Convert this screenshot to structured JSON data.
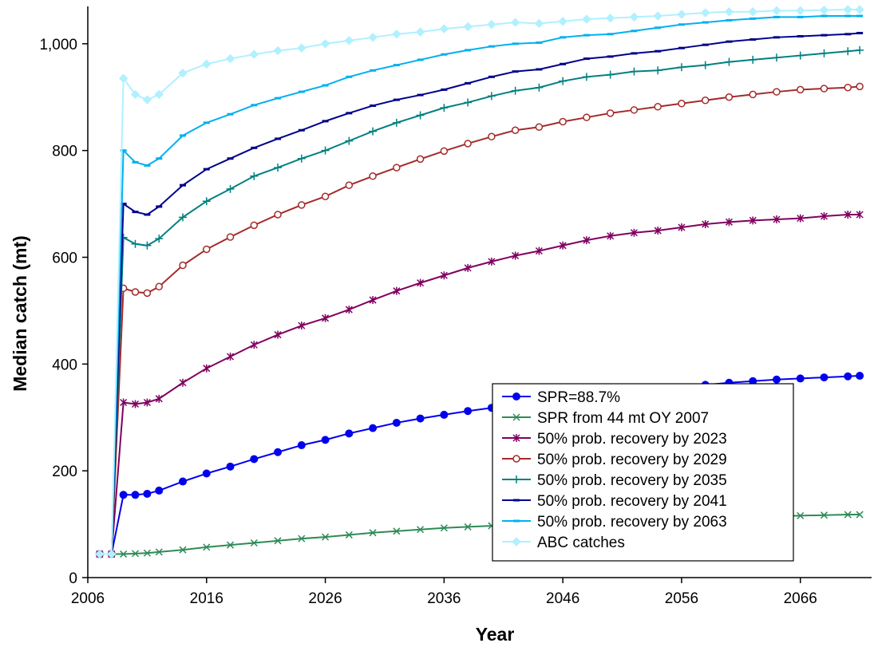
{
  "chart_data": {
    "type": "line",
    "title": "",
    "xlabel": "Year",
    "ylabel": "Median catch (mt)",
    "xlim": [
      2006,
      2072
    ],
    "ylim": [
      0,
      1070
    ],
    "xticks": [
      2006,
      2016,
      2026,
      2036,
      2046,
      2056,
      2066
    ],
    "xtick_labels": [
      "2006",
      "2016",
      "2026",
      "2036",
      "2046",
      "2056",
      "2066"
    ],
    "yticks": [
      0,
      200,
      400,
      600,
      800,
      1000
    ],
    "ytick_labels": [
      "0",
      "200",
      "400",
      "600",
      "800",
      "1,000"
    ],
    "grid": false,
    "legend_position": "bottom-right",
    "x": [
      2007,
      2008,
      2009,
      2010,
      2011,
      2012,
      2014,
      2016,
      2018,
      2020,
      2022,
      2024,
      2026,
      2028,
      2030,
      2032,
      2034,
      2036,
      2038,
      2040,
      2042,
      2044,
      2046,
      2048,
      2050,
      2052,
      2054,
      2056,
      2058,
      2060,
      2062,
      2064,
      2066,
      2068,
      2070,
      2071
    ],
    "series": [
      {
        "name": "SPR=88.7%",
        "color": "#0000ee",
        "marker": "circle",
        "values": [
          44,
          44,
          155,
          155,
          157,
          163,
          180,
          195,
          208,
          222,
          235,
          248,
          258,
          270,
          280,
          290,
          298,
          305,
          312,
          318,
          324,
          330,
          335,
          340,
          344,
          348,
          352,
          356,
          361,
          365,
          368,
          371,
          373,
          375,
          377,
          378
        ]
      },
      {
        "name": "SPR from 44 mt OY 2007",
        "color": "#2e8b57",
        "marker": "x",
        "values": [
          44,
          44,
          44,
          45,
          46,
          48,
          52,
          57,
          61,
          65,
          69,
          73,
          76,
          80,
          84,
          87,
          90,
          93,
          95,
          97,
          99,
          101,
          103,
          105,
          107,
          108,
          110,
          111,
          112,
          113,
          114,
          115,
          116,
          117,
          118,
          118
        ]
      },
      {
        "name": "50% prob. recovery by 2023",
        "color": "#800060",
        "marker": "asterisk",
        "values": [
          44,
          44,
          328,
          325,
          328,
          335,
          365,
          392,
          414,
          436,
          455,
          472,
          486,
          502,
          520,
          537,
          552,
          566,
          580,
          592,
          603,
          612,
          622,
          632,
          640,
          646,
          650,
          656,
          662,
          666,
          669,
          671,
          673,
          677,
          680,
          680
        ]
      },
      {
        "name": "50% prob. recovery by 2029",
        "color": "#a52a2a",
        "marker": "open-circle",
        "values": [
          44,
          44,
          542,
          535,
          533,
          545,
          585,
          615,
          638,
          660,
          680,
          698,
          714,
          735,
          752,
          768,
          784,
          799,
          813,
          826,
          838,
          844,
          854,
          862,
          870,
          876,
          882,
          888,
          894,
          900,
          905,
          910,
          914,
          916,
          918,
          920
        ]
      },
      {
        "name": "50% prob. recovery by 2035",
        "color": "#008080",
        "marker": "plus",
        "values": [
          44,
          44,
          637,
          625,
          622,
          635,
          675,
          705,
          728,
          752,
          768,
          785,
          800,
          818,
          836,
          852,
          866,
          880,
          890,
          902,
          912,
          918,
          930,
          938,
          942,
          948,
          950,
          956,
          960,
          966,
          970,
          974,
          978,
          982,
          986,
          988
        ]
      },
      {
        "name": "50% prob. recovery by 2041",
        "color": "#00008b",
        "marker": "dash",
        "values": [
          44,
          44,
          700,
          685,
          680,
          695,
          735,
          765,
          785,
          805,
          822,
          838,
          855,
          870,
          884,
          895,
          904,
          914,
          926,
          938,
          948,
          952,
          962,
          972,
          976,
          982,
          986,
          992,
          998,
          1004,
          1008,
          1012,
          1014,
          1016,
          1018,
          1020
        ]
      },
      {
        "name": "50% prob. recovery by 2063",
        "color": "#00b0f0",
        "marker": "dash",
        "values": [
          44,
          44,
          800,
          778,
          772,
          785,
          828,
          852,
          868,
          885,
          898,
          910,
          922,
          938,
          950,
          960,
          970,
          980,
          988,
          995,
          1000,
          1002,
          1012,
          1016,
          1018,
          1024,
          1030,
          1036,
          1040,
          1044,
          1047,
          1050,
          1050,
          1052,
          1052,
          1052
        ]
      },
      {
        "name": "ABC catches",
        "color": "#b0f0ff",
        "marker": "diamond",
        "values": [
          44,
          44,
          935,
          905,
          895,
          905,
          945,
          962,
          972,
          980,
          987,
          992,
          1000,
          1006,
          1012,
          1018,
          1022,
          1028,
          1032,
          1036,
          1040,
          1038,
          1042,
          1046,
          1048,
          1050,
          1052,
          1055,
          1058,
          1060,
          1060,
          1062,
          1062,
          1063,
          1064,
          1064
        ]
      }
    ]
  }
}
